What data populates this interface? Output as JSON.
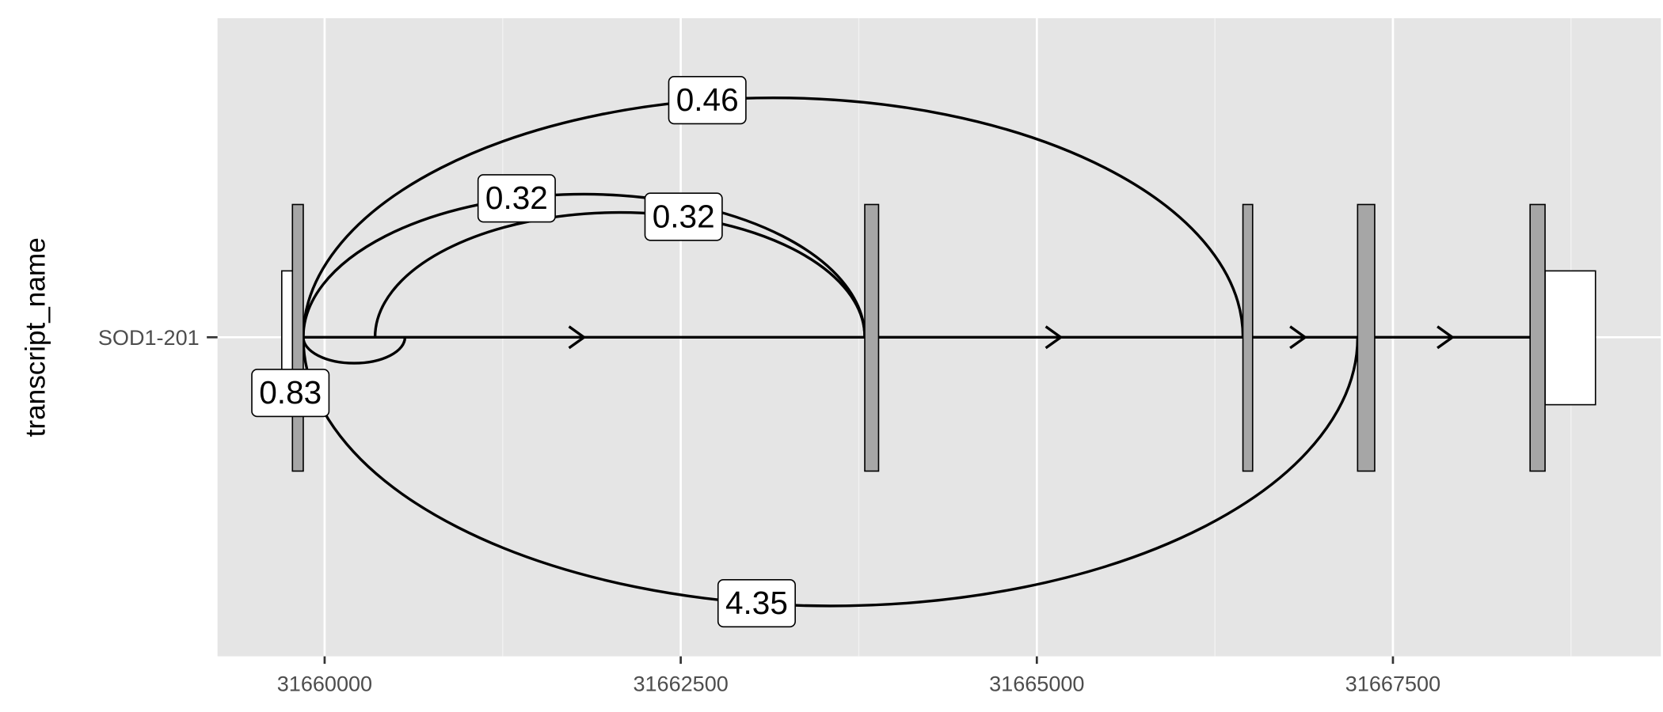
{
  "chart_data": {
    "type": "transcript",
    "y_label": "transcript_name",
    "categories": [
      "SOD1-201"
    ],
    "xlim": [
      31659248,
      31669381
    ],
    "xticks": [
      31660000,
      31662500,
      31665000,
      31667500
    ],
    "grid": true,
    "exons": {
      "start": [
        31659774,
        31663792,
        31666447,
        31667252,
        31668463
      ],
      "end": [
        31659850,
        31663889,
        31666515,
        31667372,
        31668568
      ],
      "color": "#a6a6a6"
    },
    "utrs": {
      "start": [
        31659699,
        31668568
      ],
      "end": [
        31659774,
        31668922
      ],
      "color": "#ffffff"
    },
    "junctions": {
      "start": [
        31659850,
        31659850,
        31660354,
        31659850,
        31659850
      ],
      "end": [
        31660564,
        31663792,
        31663792,
        31666447,
        31667252
      ],
      "values": [
        0.83,
        0.32,
        0.32,
        0.46,
        4.35
      ],
      "sides": [
        "below",
        "above",
        "above",
        "above",
        "below"
      ]
    }
  }
}
